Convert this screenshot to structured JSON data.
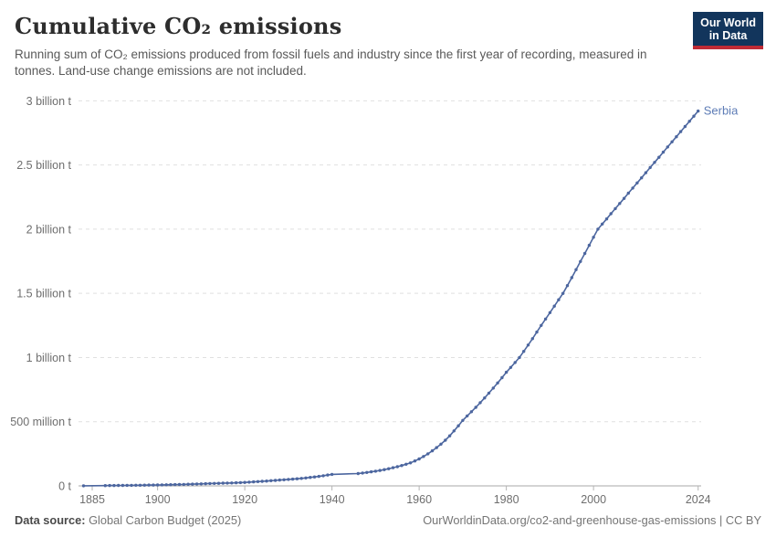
{
  "header": {
    "title": "Cumulative CO₂ emissions",
    "subtitle": "Running sum of CO₂ emissions produced from fossil fuels and industry since the first year of recording, measured in tonnes. Land-use change emissions are not included."
  },
  "logo": {
    "line1": "Our World",
    "line2": "in Data",
    "bg_color": "#12355c",
    "accent_color": "#bf2b36"
  },
  "chart_data": {
    "type": "line",
    "title": "Cumulative CO₂ emissions",
    "entity_label": "Serbia",
    "unit": "tonnes",
    "y_unit_display": "billion t",
    "x_start_year": 1883,
    "x_end_year": 2024,
    "xlim": [
      1883,
      2024
    ],
    "ylim": [
      0,
      3
    ],
    "grid": "horizontal dashed",
    "legend_position": "line-end",
    "line_color": "#4c669f",
    "label_color": "#5d7cb6",
    "x_ticks": [
      1885,
      1900,
      1920,
      1940,
      1960,
      1980,
      2000,
      2024
    ],
    "y_ticks": [
      {
        "value": 0,
        "label": "0 t"
      },
      {
        "value": 0.5,
        "label": "500 million t"
      },
      {
        "value": 1,
        "label": "1 billion t"
      },
      {
        "value": 1.5,
        "label": "1.5 billion t"
      },
      {
        "value": 2,
        "label": "2 billion t"
      },
      {
        "value": 2.5,
        "label": "2.5 billion t"
      },
      {
        "value": 3,
        "label": "3 billion t"
      }
    ],
    "series": [
      {
        "name": "Serbia",
        "values_unit": "billion tonnes",
        "values": [
          0.001,
          null,
          null,
          null,
          null,
          0.0024,
          0.0027,
          0.003,
          0.0033,
          0.0036,
          0.004,
          0.0044,
          0.0048,
          0.0052,
          0.0057,
          0.0061,
          0.0066,
          0.007,
          0.0077,
          0.0084,
          0.0092,
          0.01,
          0.0108,
          0.0117,
          0.0126,
          0.0136,
          0.0148,
          0.016,
          0.0171,
          0.0182,
          0.0193,
          0.0201,
          0.021,
          0.022,
          0.023,
          0.024,
          0.0254,
          0.027,
          0.029,
          0.0311,
          0.0333,
          0.0356,
          0.038,
          0.0405,
          0.043,
          0.0455,
          0.048,
          0.0505,
          0.053,
          0.0556,
          0.0582,
          0.062,
          0.066,
          0.07,
          0.074,
          0.079,
          0.085,
          0.09,
          null,
          null,
          null,
          null,
          null,
          0.096,
          0.1,
          0.1045,
          0.1093,
          0.1145,
          0.1205,
          0.127,
          0.134,
          0.1415,
          0.1495,
          0.1585,
          0.1685,
          0.1795,
          0.194,
          0.21,
          0.229,
          0.25,
          0.273,
          0.298,
          0.325,
          0.356,
          0.39,
          0.428,
          0.468,
          0.51,
          0.545,
          0.578,
          0.612,
          0.648,
          0.685,
          0.723,
          0.762,
          0.802,
          0.843,
          0.885,
          0.923,
          0.961,
          1.0,
          1.048,
          1.097,
          1.147,
          1.198,
          1.25,
          1.3,
          1.35,
          1.4,
          1.45,
          1.5,
          1.56,
          1.622,
          1.685,
          1.748,
          1.811,
          1.874,
          1.937,
          2.0,
          2.04,
          2.08,
          2.12,
          2.16,
          2.2,
          2.24,
          2.28,
          2.32,
          2.36,
          2.4,
          2.44,
          2.48,
          2.52,
          2.56,
          2.6,
          2.64,
          2.68,
          2.72,
          2.76,
          2.8,
          2.84,
          2.88,
          2.92
        ]
      }
    ]
  },
  "footer": {
    "source_label": "Data source:",
    "source_value": "Global Carbon Budget (2025)",
    "attribution": "OurWorldinData.org/co2-and-greenhouse-gas-emissions | CC BY"
  }
}
